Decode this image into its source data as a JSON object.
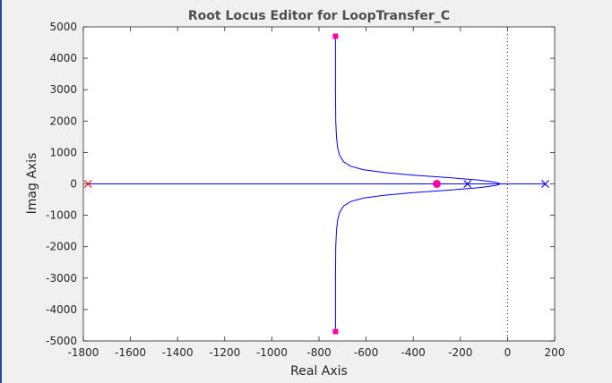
{
  "chart_data": {
    "type": "line",
    "title": "Root Locus Editor for LoopTransfer_C",
    "xlabel": "Real Axis",
    "ylabel": "Imag Axis",
    "xlim": [
      -1800,
      200
    ],
    "ylim": [
      -5000,
      5000
    ],
    "xticks": [
      -1800,
      -1600,
      -1400,
      -1200,
      -1000,
      -800,
      -600,
      -400,
      -200,
      0,
      200
    ],
    "yticks": [
      5000,
      4000,
      3000,
      2000,
      1000,
      0,
      -1000,
      -2000,
      -3000,
      -4000,
      -5000
    ],
    "grid": false,
    "imag_axis_line": {
      "x": 0,
      "style": "dotted"
    },
    "colors": {
      "locus": "#0000ff",
      "pole": "#0000ff",
      "controller_pole": "#ff0000",
      "closed_loop": "#ff00aa",
      "axes": "#262626"
    },
    "series": [
      {
        "type": "line",
        "x": [
          -730,
          -730,
          -729,
          -726,
          -721,
          -712,
          -695,
          -665,
          -610,
          -520,
          -400,
          -250,
          -120,
          -50,
          -30
        ],
        "y": [
          4700,
          3000,
          2000,
          1500,
          1150,
          900,
          700,
          560,
          450,
          360,
          280,
          200,
          120,
          50,
          0
        ]
      },
      {
        "type": "line",
        "x": [
          -730,
          -730,
          -729,
          -726,
          -721,
          -712,
          -695,
          -665,
          -610,
          -520,
          -400,
          -250,
          -120,
          -50,
          -30
        ],
        "y": [
          -4700,
          -3000,
          -2000,
          -1500,
          -1150,
          -900,
          -700,
          -560,
          -450,
          -360,
          -280,
          -200,
          -120,
          -50,
          0
        ]
      },
      {
        "type": "line",
        "x": [
          -1780,
          160
        ],
        "y": [
          0,
          0
        ]
      },
      {
        "type": "dotted",
        "x": [
          -300,
          -170
        ],
        "y": [
          0,
          0
        ]
      }
    ],
    "open_loop_poles": [
      {
        "x": -1780,
        "y": 0,
        "color": "#ff0000"
      },
      {
        "x": -170,
        "y": 0,
        "color": "#0000ff"
      },
      {
        "x": 160,
        "y": 0,
        "color": "#0000ff"
      }
    ],
    "closed_loop_poles": [
      {
        "x": -730,
        "y": 4700
      },
      {
        "x": -730,
        "y": -4700
      },
      {
        "x": -300,
        "y": 0
      }
    ]
  }
}
